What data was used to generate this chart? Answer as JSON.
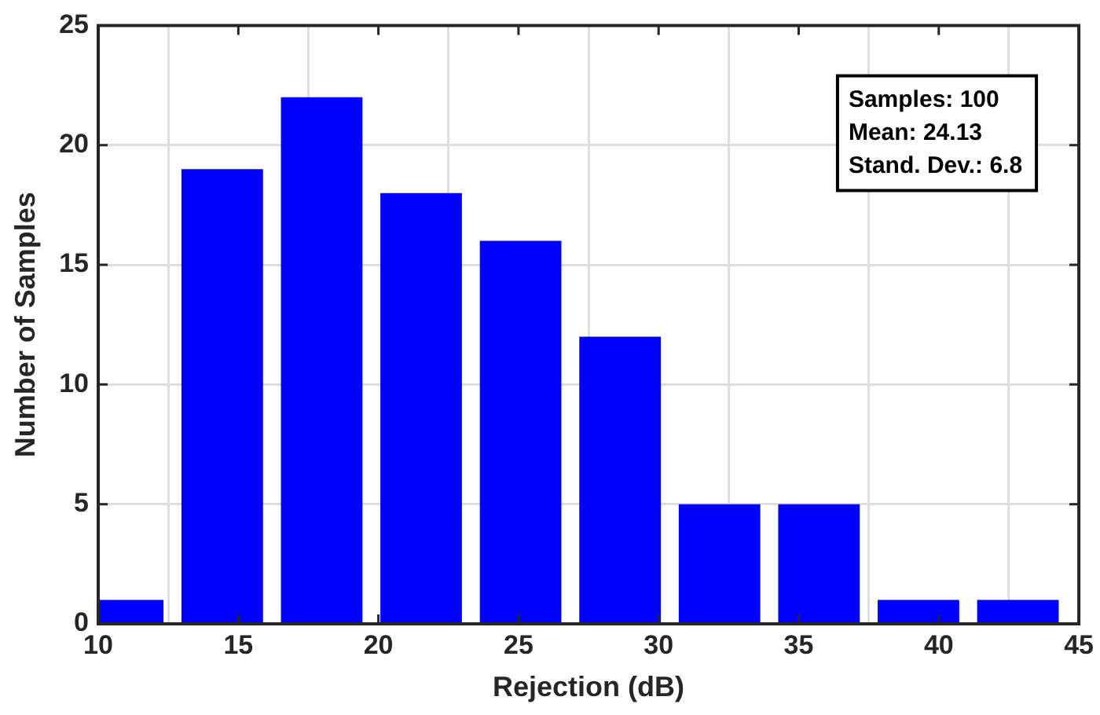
{
  "chart_data": {
    "type": "histogram",
    "xlabel": "Rejection (dB)",
    "ylabel": "Number of Samples",
    "bins": [
      9.1,
      12.65,
      16.2,
      19.75,
      23.3,
      26.85,
      30.4,
      33.95,
      37.5,
      41.05,
      44.6
    ],
    "values": [
      1,
      19,
      22,
      18,
      16,
      12,
      5,
      5,
      1,
      1
    ],
    "color": "#0000ff",
    "xlim": [
      10,
      45
    ],
    "xticks": [
      10,
      15,
      20,
      25,
      30,
      35,
      40,
      45
    ],
    "ylim": [
      0,
      25
    ],
    "yticks": [
      0,
      5,
      10,
      15,
      20,
      25
    ],
    "grid": true,
    "annotations": [
      "Samples: 100",
      "Mean: 24.13",
      "Stand. Dev.: 6.8"
    ]
  }
}
